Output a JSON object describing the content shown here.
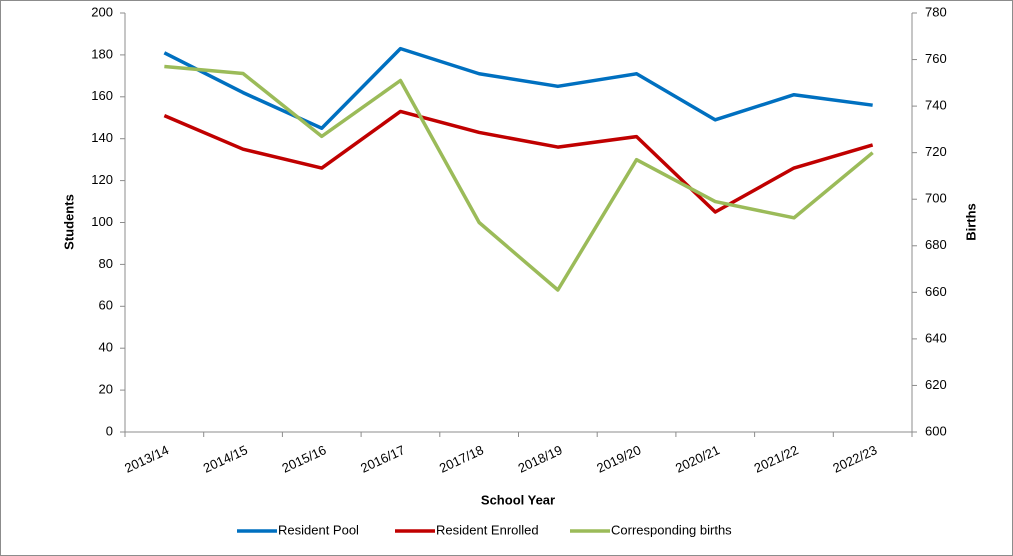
{
  "chart_data": {
    "type": "line",
    "x_label": "School Year",
    "y_label": "Students",
    "y2_label": "Births",
    "categories": [
      "2013/14",
      "2014/15",
      "2015/16",
      "2016/17",
      "2017/18",
      "2018/19",
      "2019/20",
      "2020/21",
      "2021/22",
      "2022/23"
    ],
    "series": [
      {
        "name": "Resident Pool",
        "color": "#0070c0",
        "values": [
          181,
          162,
          145,
          183,
          171,
          165,
          171,
          149,
          161,
          156
        ]
      },
      {
        "name": "Resident Enrolled",
        "color": "#c00000",
        "values": [
          151,
          135,
          126,
          153,
          143,
          136,
          141,
          105,
          126,
          137
        ]
      },
      {
        "name": "Corresponding births",
        "color": "#9bbb59",
        "axis": "y2",
        "values": [
          757,
          754,
          727,
          751,
          690,
          661,
          717,
          699,
          692,
          720
        ]
      }
    ],
    "ylim": [
      0,
      200
    ],
    "yticks": [
      0,
      20,
      40,
      60,
      80,
      100,
      120,
      140,
      160,
      180,
      200
    ],
    "y2lim": [
      600,
      780
    ],
    "y2ticks": [
      600,
      620,
      640,
      660,
      680,
      700,
      720,
      740,
      760,
      780
    ],
    "grid": false,
    "legend": "bottom"
  }
}
